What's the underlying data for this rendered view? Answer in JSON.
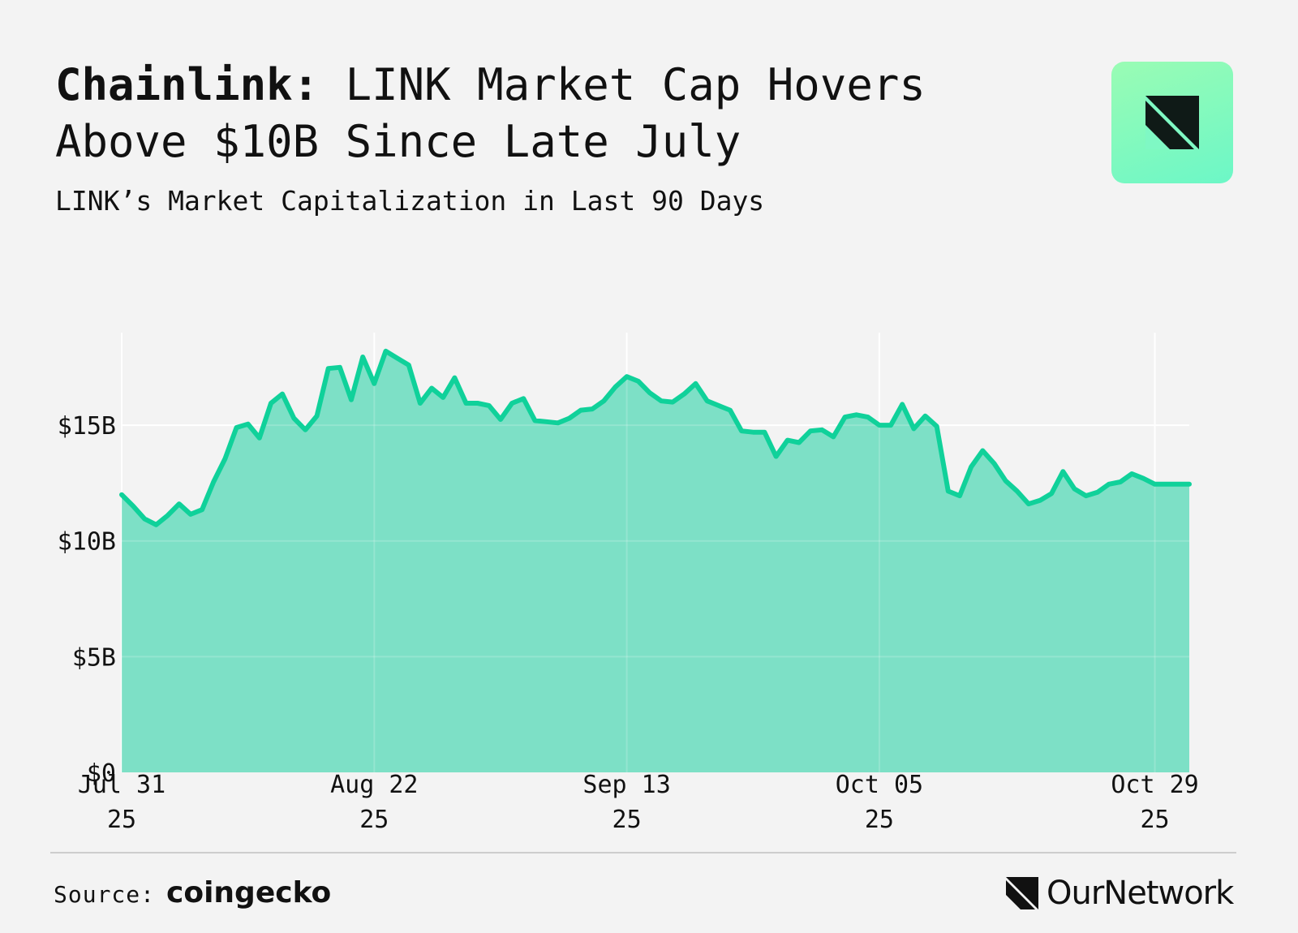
{
  "header": {
    "title_strong": "Chainlink:",
    "title_rest": "LINK Market Cap Hovers Above $10B Since Late July",
    "subtitle": "LINK’s Market Capitalization in Last 90 Days"
  },
  "logo": {
    "icon": "ournetwork-mark-icon",
    "gradient_colors": [
      "#9afcb4",
      "#6cf7c7"
    ]
  },
  "colors": {
    "line": "#10d19a",
    "area": "#7de0c6",
    "grid": "#ffffff",
    "text": "#111111",
    "background": "#f3f3f3"
  },
  "chart_data": {
    "type": "area",
    "title": "",
    "xlabel": "",
    "ylabel": "",
    "ylim": [
      0,
      19000000000
    ],
    "xlim": [
      "2025-07-31",
      "2025-11-01"
    ],
    "grid": true,
    "legend": "none",
    "yticks": [
      {
        "value": 0,
        "label": "$0"
      },
      {
        "value": 5000000000,
        "label": "$5B"
      },
      {
        "value": 10000000000,
        "label": "$10B"
      },
      {
        "value": 15000000000,
        "label": "$15B"
      }
    ],
    "xticks": [
      {
        "date": "2025-07-31",
        "label": [
          "Jul 31",
          "25"
        ]
      },
      {
        "date": "2025-08-22",
        "label": [
          "Aug 22",
          "25"
        ]
      },
      {
        "date": "2025-09-13",
        "label": [
          "Sep 13",
          "25"
        ]
      },
      {
        "date": "2025-10-05",
        "label": [
          "Oct 05",
          "25"
        ]
      },
      {
        "date": "2025-10-29",
        "label": [
          "Oct 29",
          "25"
        ]
      }
    ],
    "x": [
      "2025-07-31",
      "2025-08-01",
      "2025-08-02",
      "2025-08-03",
      "2025-08-04",
      "2025-08-05",
      "2025-08-06",
      "2025-08-07",
      "2025-08-08",
      "2025-08-09",
      "2025-08-10",
      "2025-08-11",
      "2025-08-12",
      "2025-08-13",
      "2025-08-14",
      "2025-08-15",
      "2025-08-16",
      "2025-08-17",
      "2025-08-18",
      "2025-08-19",
      "2025-08-20",
      "2025-08-21",
      "2025-08-22",
      "2025-08-23",
      "2025-08-24",
      "2025-08-25",
      "2025-08-26",
      "2025-08-27",
      "2025-08-28",
      "2025-08-29",
      "2025-08-30",
      "2025-08-31",
      "2025-09-01",
      "2025-09-02",
      "2025-09-03",
      "2025-09-04",
      "2025-09-05",
      "2025-09-06",
      "2025-09-07",
      "2025-09-08",
      "2025-09-09",
      "2025-09-10",
      "2025-09-11",
      "2025-09-12",
      "2025-09-13",
      "2025-09-14",
      "2025-09-15",
      "2025-09-16",
      "2025-09-17",
      "2025-09-18",
      "2025-09-19",
      "2025-09-20",
      "2025-09-21",
      "2025-09-22",
      "2025-09-23",
      "2025-09-24",
      "2025-09-25",
      "2025-09-26",
      "2025-09-27",
      "2025-09-28",
      "2025-09-29",
      "2025-09-30",
      "2025-10-01",
      "2025-10-02",
      "2025-10-03",
      "2025-10-04",
      "2025-10-05",
      "2025-10-06",
      "2025-10-07",
      "2025-10-08",
      "2025-10-09",
      "2025-10-10",
      "2025-10-11",
      "2025-10-12",
      "2025-10-13",
      "2025-10-14",
      "2025-10-15",
      "2025-10-16",
      "2025-10-17",
      "2025-10-18",
      "2025-10-19",
      "2025-10-20",
      "2025-10-21",
      "2025-10-22",
      "2025-10-23",
      "2025-10-24",
      "2025-10-25",
      "2025-10-26",
      "2025-10-27",
      "2025-10-28",
      "2025-10-29",
      "2025-10-30",
      "2025-10-31",
      "2025-11-01"
    ],
    "series": [
      {
        "values": [
          12000000000,
          11500000000,
          10950000000,
          10700000000,
          11100000000,
          11600000000,
          11150000000,
          11350000000,
          12550000000,
          13550000000,
          14900000000,
          15050000000,
          14450000000,
          15950000000,
          16350000000,
          15300000000,
          14800000000,
          15400000000,
          17450000000,
          17500000000,
          16100000000,
          17950000000,
          16800000000,
          18200000000,
          17900000000,
          17600000000,
          15950000000,
          16600000000,
          16200000000,
          17050000000,
          15950000000,
          15950000000,
          15850000000,
          15250000000,
          15950000000,
          16150000000,
          15200000000,
          15150000000,
          15100000000,
          15300000000,
          15650000000,
          15700000000,
          16050000000,
          16650000000,
          17100000000,
          16900000000,
          16400000000,
          16050000000,
          16000000000,
          16350000000,
          16800000000,
          16050000000,
          15850000000,
          15650000000,
          14750000000,
          14700000000,
          14700000000,
          13650000000,
          14350000000,
          14250000000,
          14750000000,
          14800000000,
          14500000000,
          15350000000,
          15450000000,
          15350000000,
          15000000000,
          15000000000,
          15900000000,
          14850000000,
          15400000000,
          14950000000,
          12150000000,
          11950000000,
          13200000000,
          13900000000,
          13350000000,
          12600000000,
          12150000000,
          11600000000,
          11750000000,
          12050000000,
          13000000000,
          12250000000,
          11950000000,
          12100000000,
          12450000000,
          12550000000,
          12900000000,
          12700000000,
          12450000000,
          12450000000,
          12450000000,
          12450000000
        ]
      }
    ]
  },
  "footer": {
    "source_label": "Source:",
    "source_name": "coingecko",
    "brand_name": "OurNetwork",
    "brand_icon": "ournetwork-mark-icon"
  }
}
